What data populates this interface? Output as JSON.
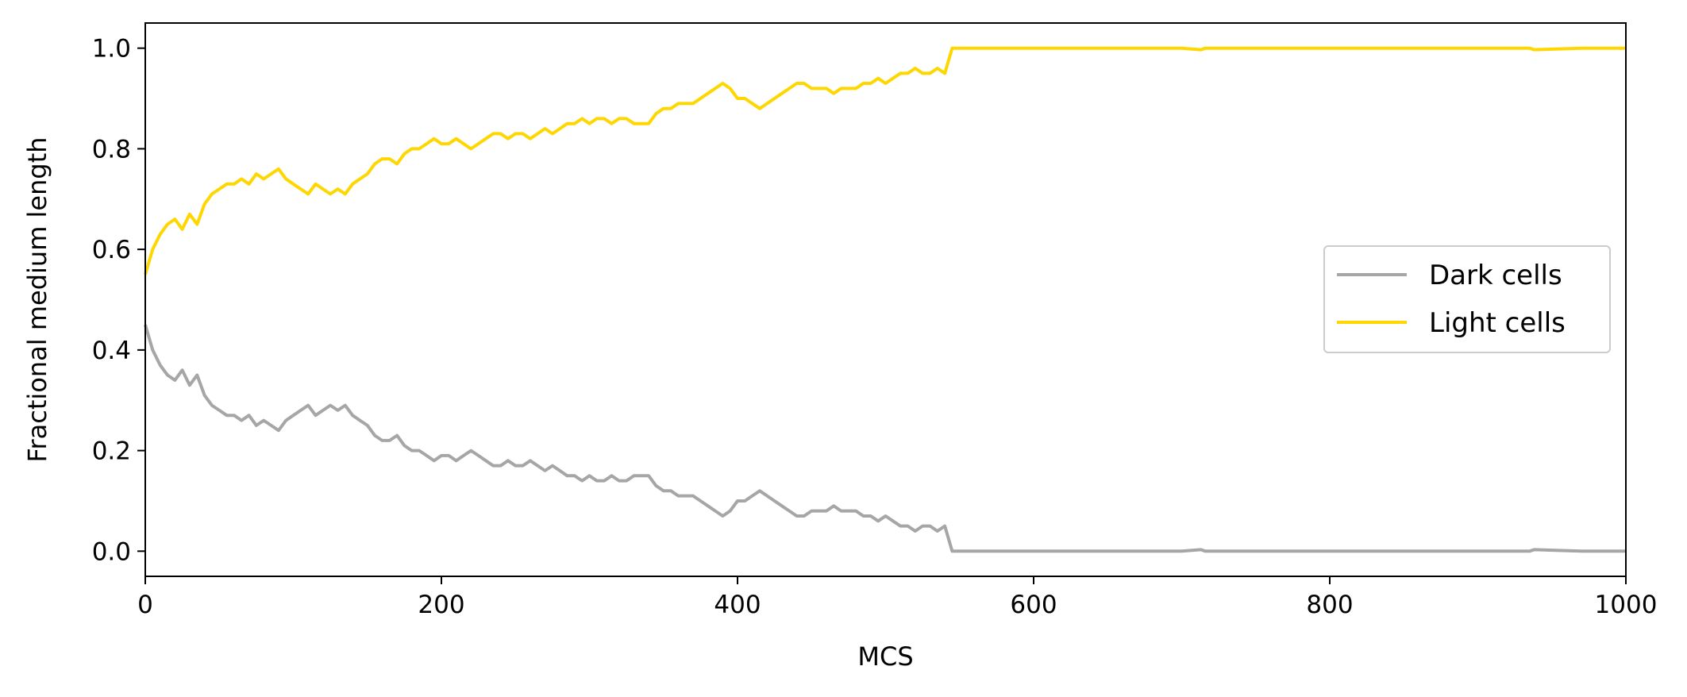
{
  "chart_data": {
    "type": "line",
    "xlabel": "MCS",
    "ylabel": "Fractional medium length",
    "xlim": [
      0,
      1000
    ],
    "ylim": [
      -0.05,
      1.05
    ],
    "x_ticks": [
      0,
      200,
      400,
      600,
      800,
      1000
    ],
    "x_tick_labels": [
      "0",
      "200",
      "400",
      "600",
      "800",
      "1000"
    ],
    "y_ticks": [
      0.0,
      0.2,
      0.4,
      0.6,
      0.8,
      1.0
    ],
    "y_tick_labels": [
      "0.0",
      "0.2",
      "0.4",
      "0.6",
      "0.8",
      "1.0"
    ],
    "grid": false,
    "legend_position": "center-right",
    "series": [
      {
        "name": "Dark cells",
        "color": "#a6a6a6",
        "x": [
          0,
          5,
          10,
          15,
          20,
          25,
          30,
          35,
          40,
          45,
          50,
          55,
          60,
          65,
          70,
          75,
          80,
          85,
          90,
          95,
          100,
          105,
          110,
          115,
          120,
          125,
          130,
          135,
          140,
          145,
          150,
          155,
          160,
          165,
          170,
          175,
          180,
          185,
          190,
          195,
          200,
          205,
          210,
          215,
          220,
          225,
          230,
          235,
          240,
          245,
          250,
          255,
          260,
          265,
          270,
          275,
          280,
          285,
          290,
          295,
          300,
          305,
          310,
          315,
          320,
          325,
          330,
          335,
          340,
          345,
          350,
          355,
          360,
          365,
          370,
          375,
          380,
          385,
          390,
          395,
          400,
          405,
          410,
          415,
          420,
          425,
          430,
          435,
          440,
          445,
          450,
          455,
          460,
          465,
          470,
          475,
          480,
          485,
          490,
          495,
          500,
          505,
          510,
          515,
          520,
          525,
          530,
          535,
          540,
          545,
          550,
          600,
          650,
          700,
          713,
          716,
          750,
          800,
          850,
          900,
          935,
          938,
          970,
          1000
        ],
        "y": [
          0.45,
          0.4,
          0.37,
          0.35,
          0.34,
          0.36,
          0.33,
          0.35,
          0.31,
          0.29,
          0.28,
          0.27,
          0.27,
          0.26,
          0.27,
          0.25,
          0.26,
          0.25,
          0.24,
          0.26,
          0.27,
          0.28,
          0.29,
          0.27,
          0.28,
          0.29,
          0.28,
          0.29,
          0.27,
          0.26,
          0.25,
          0.23,
          0.22,
          0.22,
          0.23,
          0.21,
          0.2,
          0.2,
          0.19,
          0.18,
          0.19,
          0.19,
          0.18,
          0.19,
          0.2,
          0.19,
          0.18,
          0.17,
          0.17,
          0.18,
          0.17,
          0.17,
          0.18,
          0.17,
          0.16,
          0.17,
          0.16,
          0.15,
          0.15,
          0.14,
          0.15,
          0.14,
          0.14,
          0.15,
          0.14,
          0.14,
          0.15,
          0.15,
          0.15,
          0.13,
          0.12,
          0.12,
          0.11,
          0.11,
          0.11,
          0.1,
          0.09,
          0.08,
          0.07,
          0.08,
          0.1,
          0.1,
          0.11,
          0.12,
          0.11,
          0.1,
          0.09,
          0.08,
          0.07,
          0.07,
          0.08,
          0.08,
          0.08,
          0.09,
          0.08,
          0.08,
          0.08,
          0.07,
          0.07,
          0.06,
          0.07,
          0.06,
          0.05,
          0.05,
          0.04,
          0.05,
          0.05,
          0.04,
          0.05,
          0.0,
          0.0,
          0.0,
          0.0,
          0.0,
          0.003,
          0.0,
          0.0,
          0.0,
          0.0,
          0.0,
          0.0,
          0.003,
          0.0,
          0.0
        ]
      },
      {
        "name": "Light cells",
        "color": "#ffd700",
        "x": [
          0,
          5,
          10,
          15,
          20,
          25,
          30,
          35,
          40,
          45,
          50,
          55,
          60,
          65,
          70,
          75,
          80,
          85,
          90,
          95,
          100,
          105,
          110,
          115,
          120,
          125,
          130,
          135,
          140,
          145,
          150,
          155,
          160,
          165,
          170,
          175,
          180,
          185,
          190,
          195,
          200,
          205,
          210,
          215,
          220,
          225,
          230,
          235,
          240,
          245,
          250,
          255,
          260,
          265,
          270,
          275,
          280,
          285,
          290,
          295,
          300,
          305,
          310,
          315,
          320,
          325,
          330,
          335,
          340,
          345,
          350,
          355,
          360,
          365,
          370,
          375,
          380,
          385,
          390,
          395,
          400,
          405,
          410,
          415,
          420,
          425,
          430,
          435,
          440,
          445,
          450,
          455,
          460,
          465,
          470,
          475,
          480,
          485,
          490,
          495,
          500,
          505,
          510,
          515,
          520,
          525,
          530,
          535,
          540,
          545,
          550,
          600,
          650,
          700,
          713,
          716,
          750,
          800,
          850,
          900,
          935,
          938,
          970,
          1000
        ],
        "y": [
          0.55,
          0.6,
          0.63,
          0.65,
          0.66,
          0.64,
          0.67,
          0.65,
          0.69,
          0.71,
          0.72,
          0.73,
          0.73,
          0.74,
          0.73,
          0.75,
          0.74,
          0.75,
          0.76,
          0.74,
          0.73,
          0.72,
          0.71,
          0.73,
          0.72,
          0.71,
          0.72,
          0.71,
          0.73,
          0.74,
          0.75,
          0.77,
          0.78,
          0.78,
          0.77,
          0.79,
          0.8,
          0.8,
          0.81,
          0.82,
          0.81,
          0.81,
          0.82,
          0.81,
          0.8,
          0.81,
          0.82,
          0.83,
          0.83,
          0.82,
          0.83,
          0.83,
          0.82,
          0.83,
          0.84,
          0.83,
          0.84,
          0.85,
          0.85,
          0.86,
          0.85,
          0.86,
          0.86,
          0.85,
          0.86,
          0.86,
          0.85,
          0.85,
          0.85,
          0.87,
          0.88,
          0.88,
          0.89,
          0.89,
          0.89,
          0.9,
          0.91,
          0.92,
          0.93,
          0.92,
          0.9,
          0.9,
          0.89,
          0.88,
          0.89,
          0.9,
          0.91,
          0.92,
          0.93,
          0.93,
          0.92,
          0.92,
          0.92,
          0.91,
          0.92,
          0.92,
          0.92,
          0.93,
          0.93,
          0.94,
          0.93,
          0.94,
          0.95,
          0.95,
          0.96,
          0.95,
          0.95,
          0.96,
          0.95,
          1.0,
          1.0,
          1.0,
          1.0,
          1.0,
          0.997,
          1.0,
          1.0,
          1.0,
          1.0,
          1.0,
          1.0,
          0.997,
          1.0,
          1.0
        ]
      }
    ]
  }
}
